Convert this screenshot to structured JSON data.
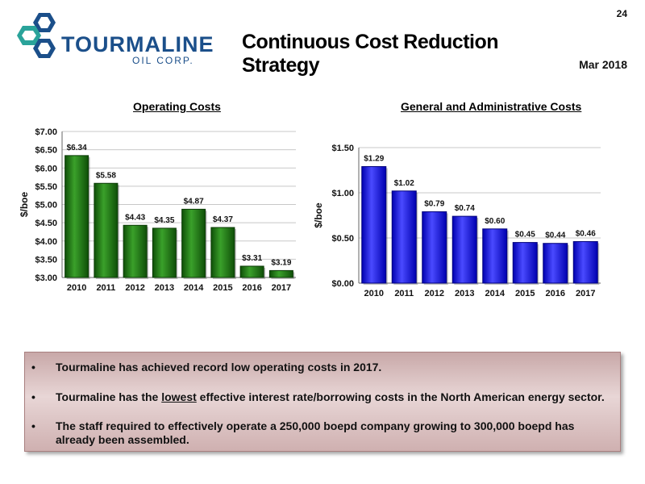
{
  "page_number": "24",
  "logo": {
    "wordmark": "TOURMALINE",
    "subtext": "OIL CORP."
  },
  "title": "Continuous Cost Reduction Strategy",
  "date": "Mar 2018",
  "colors": {
    "operating_bars": "#1f7a12",
    "ga_bars": "#1a1aff",
    "panel": "#d9c0c0"
  },
  "chart_data": [
    {
      "type": "bar",
      "title": "Operating Costs",
      "ylabel": "$/boe",
      "xlabel": "",
      "categories": [
        "2010",
        "2011",
        "2012",
        "2013",
        "2014",
        "2015",
        "2016",
        "2017"
      ],
      "values": [
        6.34,
        5.58,
        4.43,
        4.35,
        4.87,
        4.37,
        3.31,
        3.19
      ],
      "value_labels": [
        "$6.34",
        "$5.58",
        "$4.43",
        "$4.35",
        "$4.87",
        "$4.37",
        "$3.31",
        "$3.19"
      ],
      "ylim": [
        3.0,
        7.0
      ],
      "yticks": [
        3.0,
        3.5,
        4.0,
        4.5,
        5.0,
        5.5,
        6.0,
        6.5,
        7.0
      ],
      "ytick_labels": [
        "$3.00",
        "$3.50",
        "$4.00",
        "$4.50",
        "$5.00",
        "$5.50",
        "$6.00",
        "$6.50",
        "$7.00"
      ],
      "grid": true,
      "legend": "none"
    },
    {
      "type": "bar",
      "title": "General and Administrative Costs",
      "ylabel": "$/boe",
      "xlabel": "",
      "categories": [
        "2010",
        "2011",
        "2012",
        "2013",
        "2014",
        "2015",
        "2016",
        "2017"
      ],
      "values": [
        1.29,
        1.02,
        0.79,
        0.74,
        0.6,
        0.45,
        0.44,
        0.46
      ],
      "value_labels": [
        "$1.29",
        "$1.02",
        "$0.79",
        "$0.74",
        "$0.60",
        "$0.45",
        "$0.44",
        "$0.46"
      ],
      "ylim": [
        0,
        1.5
      ],
      "yticks": [
        0,
        0.5,
        1.0,
        1.5
      ],
      "ytick_labels": [
        "$0.00",
        "$0.50",
        "$1.00",
        "$1.50"
      ],
      "grid": true,
      "legend": "none"
    }
  ],
  "bullets": [
    {
      "parts": [
        "Tourmaline has achieved record low operating costs in 2017."
      ]
    },
    {
      "parts": [
        "Tourmaline has the ",
        "lowest",
        " effective interest rate/borrowing costs in the North American energy sector."
      ]
    },
    {
      "parts": [
        "The staff required to effectively operate a 250,000 boepd company growing to 300,000 boepd has already been assembled."
      ]
    }
  ],
  "bullet_symbol": "•"
}
